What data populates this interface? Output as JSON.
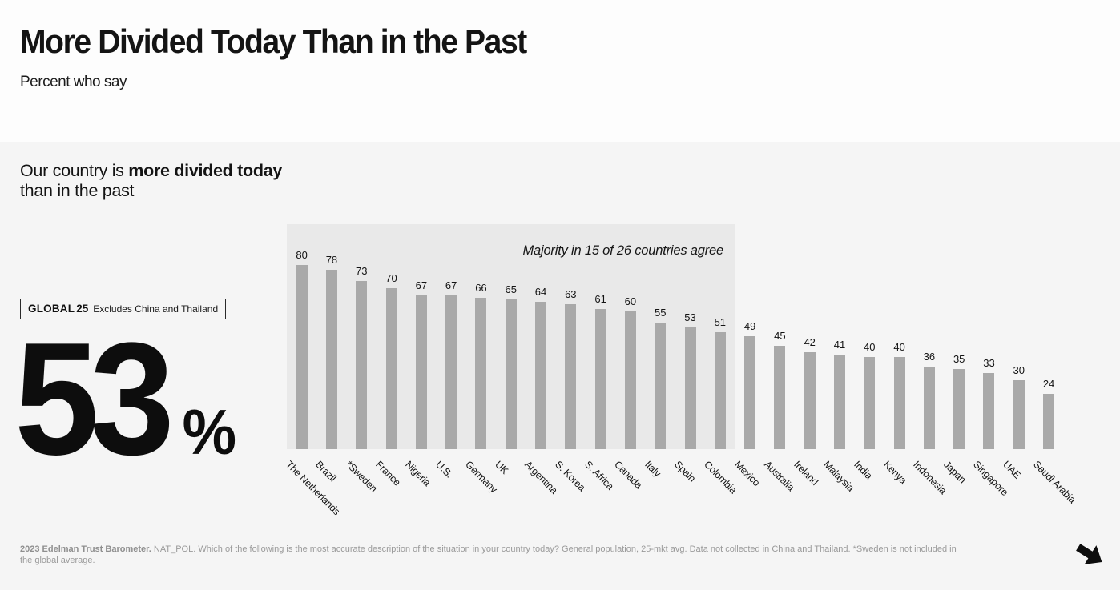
{
  "header": {
    "title": "More Divided Today Than in the Past",
    "subtitle": "Percent who say"
  },
  "statement": {
    "prefix": "Our country is ",
    "bold": "more divided today",
    "line2": "than in the past"
  },
  "global_badge": {
    "label": "GLOBAL",
    "count": "25",
    "note": "Excludes China and Thailand"
  },
  "big_stat": {
    "value": "53",
    "unit": "%"
  },
  "chart_data": {
    "type": "bar",
    "annotation": "Majority in 15 of 26 countries agree",
    "categories": [
      "The Netherlands",
      "Brazil",
      "*Sweden",
      "France",
      "Nigeria",
      "U.S.",
      "Germany",
      "UK",
      "Argentina",
      "S. Korea",
      "S. Africa",
      "Canada",
      "Italy",
      "Spain",
      "Colombia",
      "Mexico",
      "Australia",
      "Ireland",
      "Malaysia",
      "India",
      "Kenya",
      "Indonesia",
      "Japan",
      "Singapore",
      "UAE",
      "Saudi Arabia"
    ],
    "values": [
      80,
      78,
      73,
      70,
      67,
      67,
      66,
      65,
      64,
      63,
      61,
      60,
      55,
      53,
      51,
      49,
      45,
      42,
      41,
      40,
      40,
      36,
      35,
      33,
      30,
      24
    ],
    "highlight_count": 15,
    "ylim": [
      0,
      97
    ],
    "grid": false,
    "legend": false,
    "colors": {
      "bar": "#a9a9a9",
      "highlight_bg": "#e9e9e9",
      "value_label": "#141414"
    }
  },
  "footer": {
    "source_bold": "2023 Edelman Trust Barometer.",
    "text": " NAT_POL. Which of the following is the most accurate description of the situation in your country today? General population, 25-mkt avg. Data not collected in China and Thailand. *Sweden is not included in the global average."
  },
  "nav": {
    "next_label": "next"
  }
}
